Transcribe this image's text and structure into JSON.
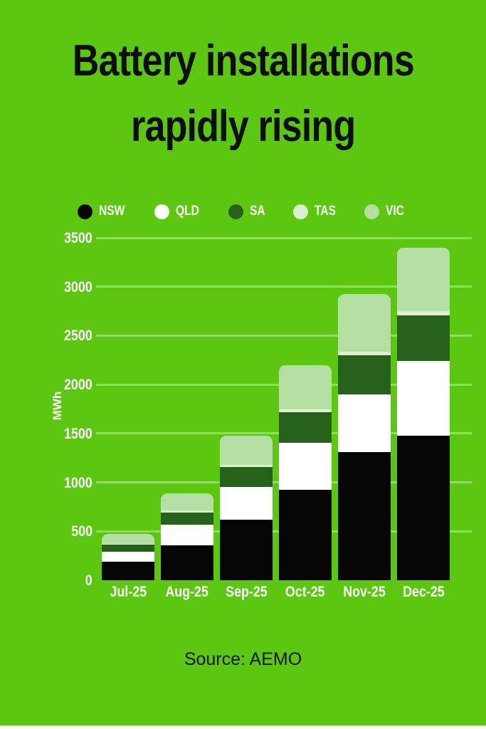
{
  "poster": {
    "title_line1": "Battery installations",
    "title_line2": "rapidly rising",
    "source_text": "Source: AEMO"
  },
  "colors": {
    "background": "#5cc711",
    "title_text": "#0d0d0d",
    "axis_text": "#ffffff",
    "gridline": "rgba(255,255,255,0.35)",
    "bottom_strip": "#ffffff"
  },
  "chart_data": {
    "type": "bar",
    "stacked": true,
    "title": "Battery installations rapidly rising",
    "categories": [
      "Jul-25",
      "Aug-25",
      "Sep-25",
      "Oct-25",
      "Nov-25",
      "Dec-25"
    ],
    "series": [
      {
        "name": "NSW",
        "color": "#050505",
        "values": [
          190,
          355,
          620,
          925,
          1310,
          1475
        ]
      },
      {
        "name": "QLD",
        "color": "#ffffff",
        "values": [
          100,
          210,
          330,
          480,
          590,
          765
        ]
      },
      {
        "name": "SA",
        "color": "#26611b",
        "values": [
          75,
          130,
          210,
          315,
          400,
          465
        ]
      },
      {
        "name": "TAS",
        "color": "#dcefd2",
        "values": [
          10,
          15,
          20,
          25,
          35,
          45
        ]
      },
      {
        "name": "VIC",
        "color": "#b3dfa2",
        "values": [
          100,
          180,
          300,
          455,
          590,
          650
        ]
      }
    ],
    "totals_estimated": [
      475,
      890,
      1480,
      2200,
      2925,
      3400
    ],
    "xlabel": "",
    "ylabel": "MWh",
    "ylim": [
      0,
      3500
    ],
    "yticks": [
      0,
      500,
      1000,
      1500,
      2000,
      2500,
      3000,
      3500
    ],
    "grid": true,
    "legend_position": "top"
  }
}
